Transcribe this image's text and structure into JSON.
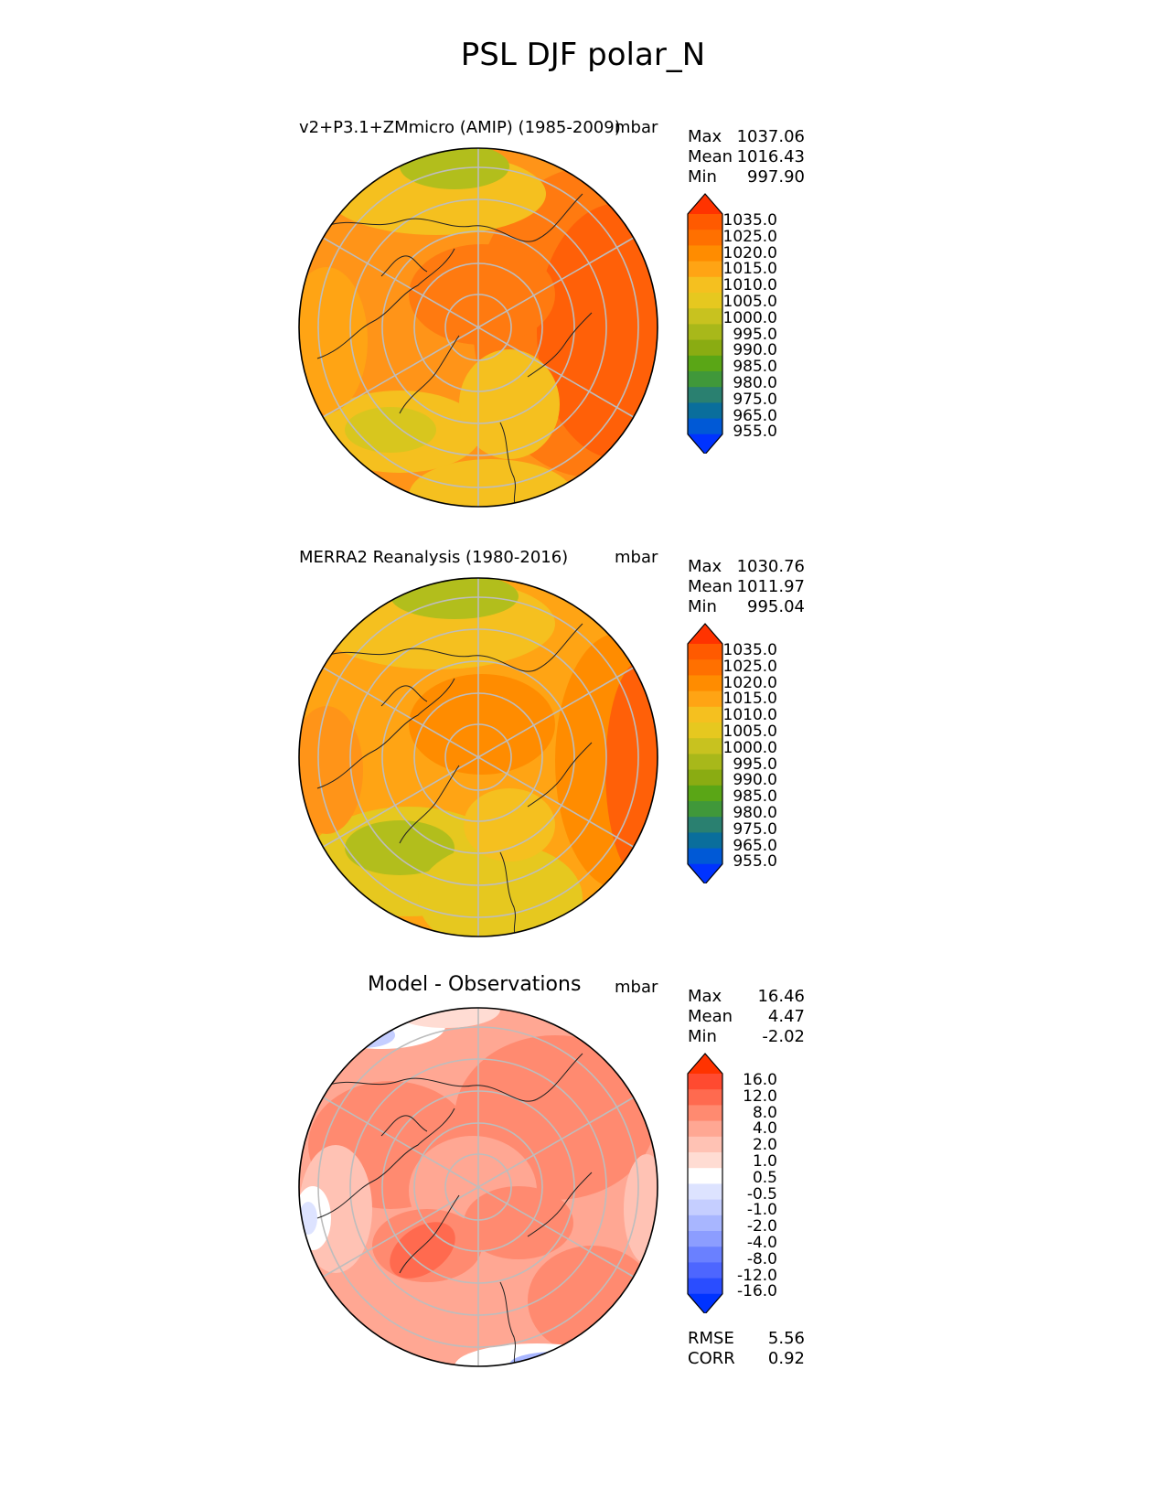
{
  "figure": {
    "title": "PSL DJF polar_N"
  },
  "panels": [
    {
      "title": "v2+P3.1+ZMmicro (AMIP) (1985-2009)",
      "units": "mbar",
      "stats": [
        {
          "label": "Max",
          "value": "1037.06"
        },
        {
          "label": "Mean",
          "value": "1016.43"
        },
        {
          "label": "Min",
          "value": "997.90"
        }
      ]
    },
    {
      "title": "MERRA2 Reanalysis (1980-2016)",
      "units": "mbar",
      "stats": [
        {
          "label": "Max",
          "value": "1030.76"
        },
        {
          "label": "Mean",
          "value": "1011.97"
        },
        {
          "label": "Min",
          "value": "995.04"
        }
      ]
    },
    {
      "title": "Model - Observations",
      "units": "mbar",
      "stats": [
        {
          "label": "Max",
          "value": "16.46"
        },
        {
          "label": "Mean",
          "value": "4.47"
        },
        {
          "label": "Min",
          "value": "-2.02"
        }
      ]
    }
  ],
  "colorbars": {
    "absolute": {
      "tick_labels": [
        "1035.0",
        "1025.0",
        "1020.0",
        "1015.0",
        "1010.0",
        "1005.0",
        "1000.0",
        "995.0",
        "990.0",
        "985.0",
        "980.0",
        "975.0",
        "965.0",
        "955.0"
      ],
      "colors_top_to_bottom": [
        "#ff3300",
        "#ff5a00",
        "#ff7000",
        "#ff8c00",
        "#ffa414",
        "#f5c01f",
        "#e6c81f",
        "#c8c21f",
        "#a8b81a",
        "#8aac12",
        "#5aa616",
        "#40983a",
        "#2a8070",
        "#0a6e9c",
        "#0059d6",
        "#0033ff"
      ]
    },
    "difference": {
      "tick_labels": [
        "16.0",
        "12.0",
        "8.0",
        "4.0",
        "2.0",
        "1.0",
        "0.5",
        "-0.5",
        "-1.0",
        "-2.0",
        "-4.0",
        "-8.0",
        "-12.0",
        "-16.0"
      ],
      "colors_top_to_bottom": [
        "#ff3300",
        "#ff4a30",
        "#ff6a4f",
        "#ff8a70",
        "#ffa793",
        "#ffc2b4",
        "#ffdcd3",
        "#ffffff",
        "#dde3ff",
        "#c5ceff",
        "#a8b6ff",
        "#8c9dff",
        "#6a80ff",
        "#4d66ff",
        "#2a4dff",
        "#0033ff"
      ]
    }
  },
  "metrics": [
    {
      "label": "RMSE",
      "value": "5.56"
    },
    {
      "label": "CORR",
      "value": "0.92"
    }
  ]
}
